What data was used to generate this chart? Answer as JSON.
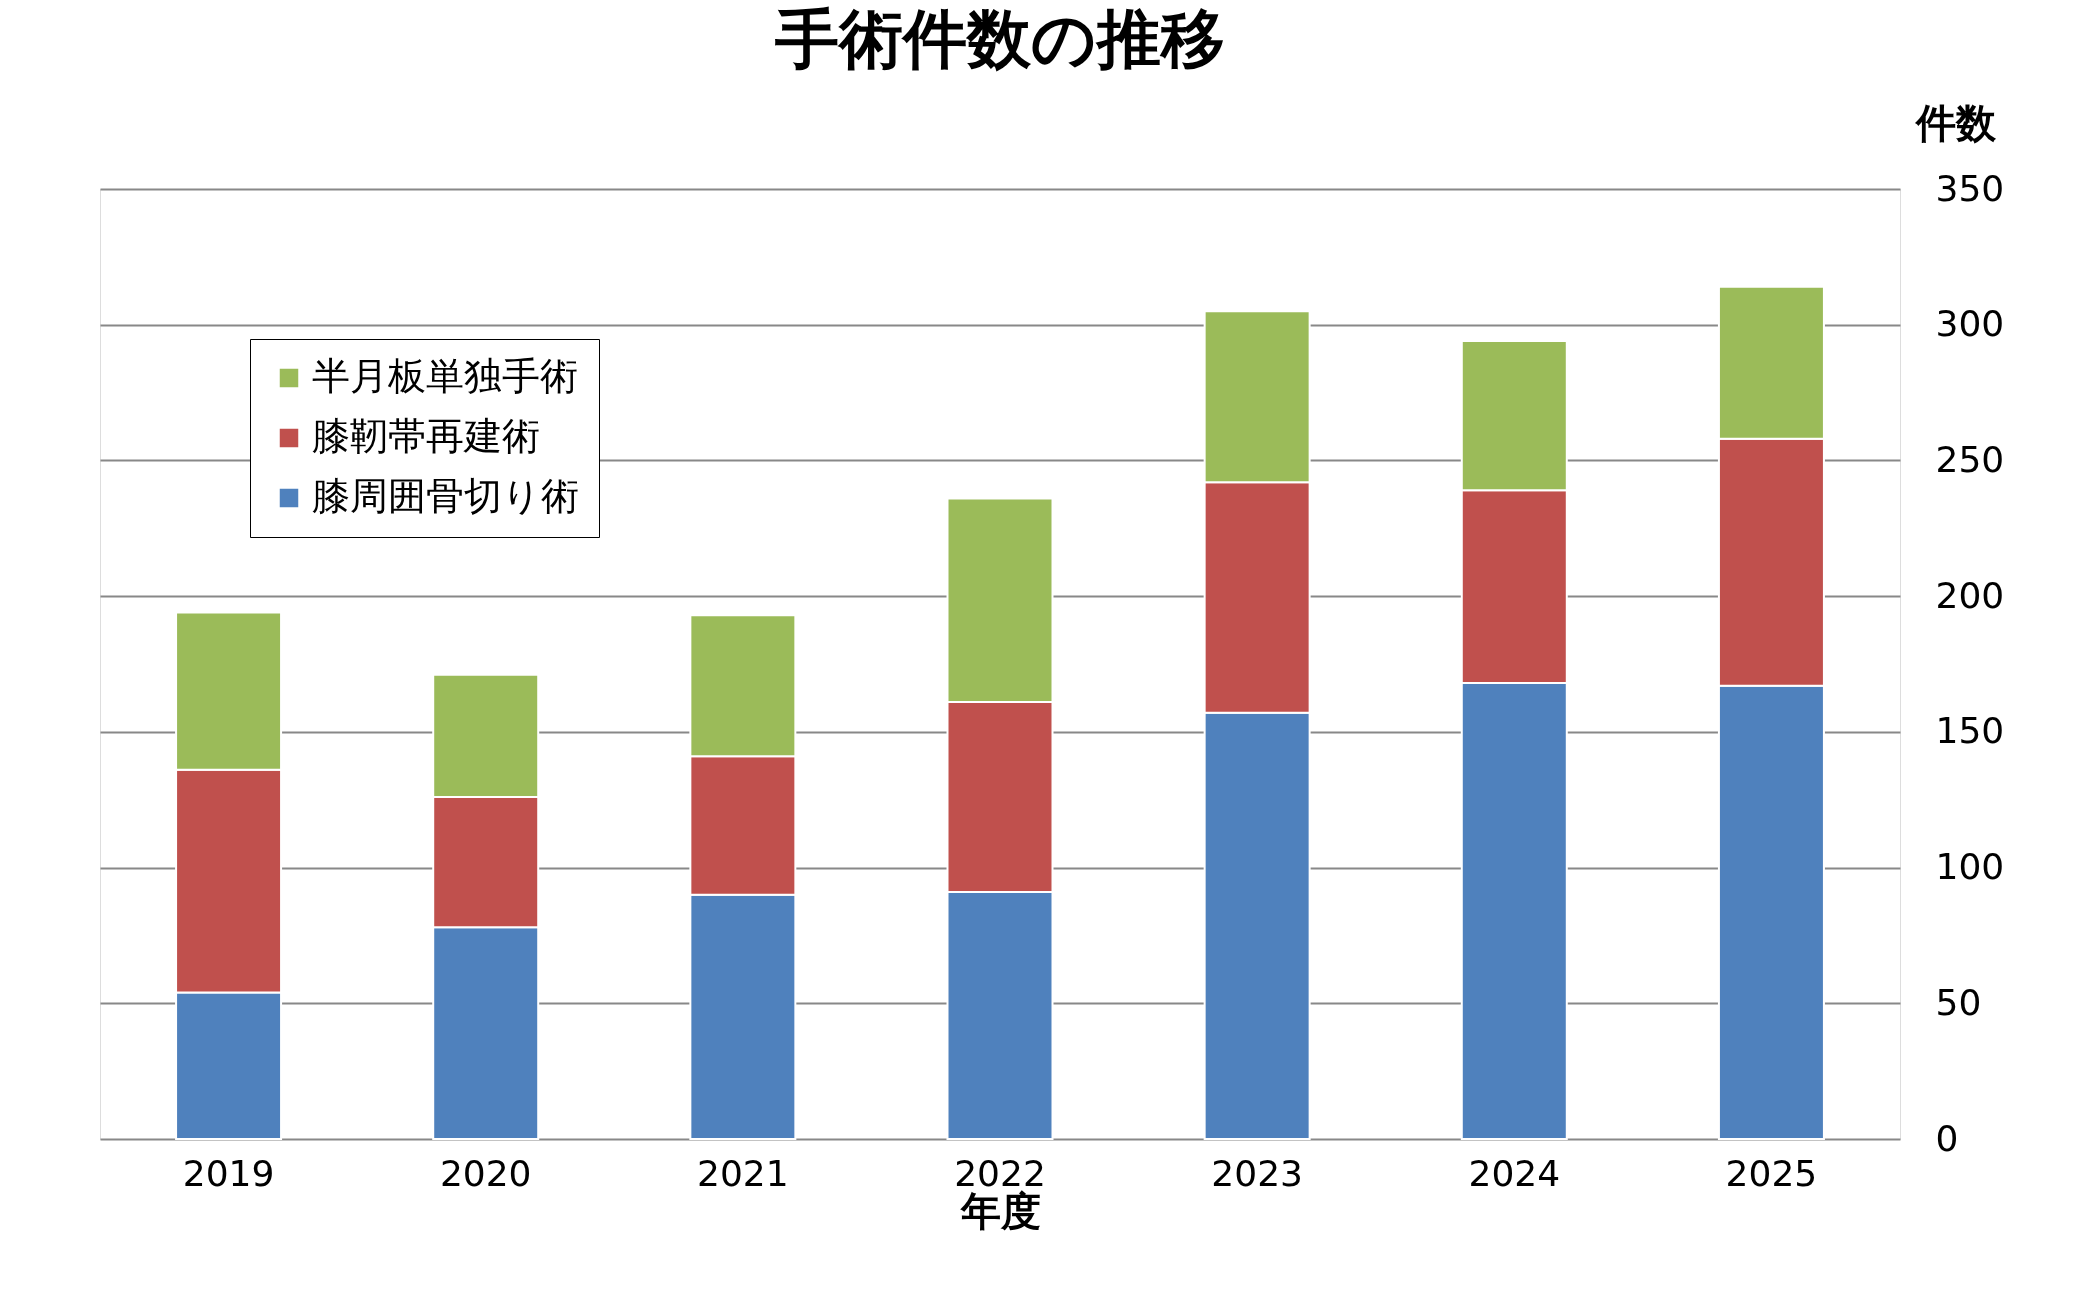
{
  "chart_data": {
    "type": "bar",
    "title": "手術件数の推移",
    "xlabel": "年度",
    "ylabel": "件数",
    "categories": [
      "2019",
      "2020",
      "2021",
      "2022",
      "2023",
      "2024",
      "2025"
    ],
    "stacked": true,
    "series": [
      {
        "name": "膝周囲骨切り術",
        "color": "#4f81bd",
        "values": [
          54,
          78,
          90,
          91,
          157,
          168,
          167
        ]
      },
      {
        "name": "膝靭帯再建術",
        "color": "#c0504d",
        "values": [
          82,
          48,
          51,
          70,
          85,
          71,
          91
        ]
      },
      {
        "name": "半月板単独手術",
        "color": "#9bbb59",
        "values": [
          58,
          45,
          52,
          75,
          63,
          55,
          56
        ]
      }
    ],
    "ylim": [
      0,
      350
    ],
    "yticks": [
      0,
      50,
      100,
      150,
      200,
      250,
      300,
      350
    ],
    "grid": "y",
    "legend": "top left"
  }
}
